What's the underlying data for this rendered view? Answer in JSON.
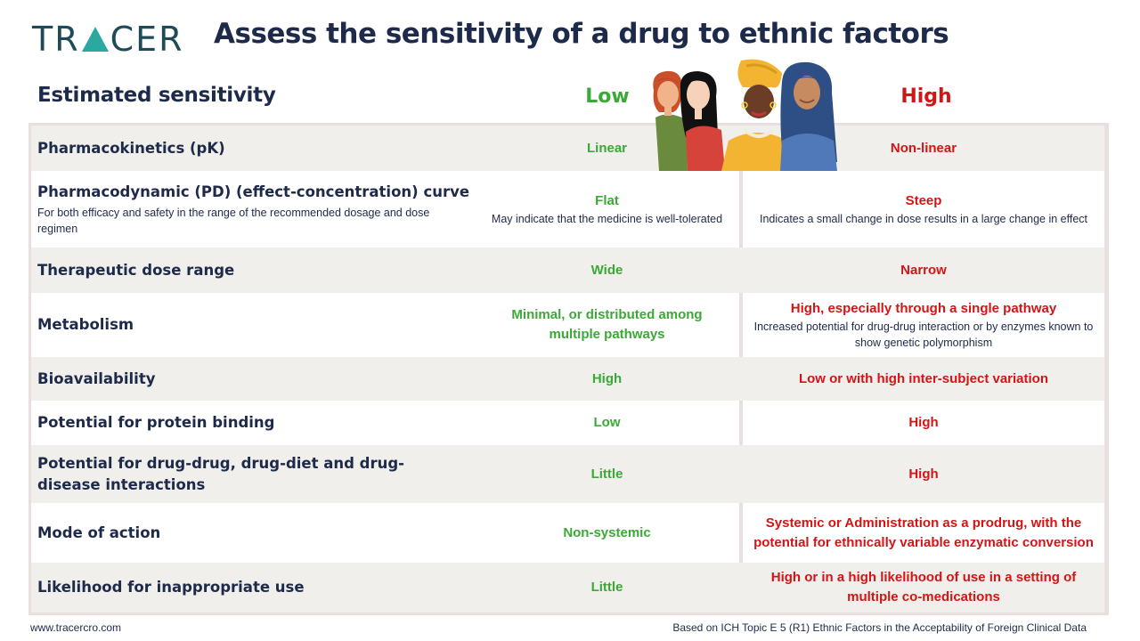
{
  "brand": {
    "logo_left": "TR",
    "logo_right": "CER",
    "colors": {
      "navy": "#1e2a4a",
      "teal": "#2ba9a1",
      "green": "#3aa935",
      "red": "#d41515"
    }
  },
  "title": "Assess the sensitivity of a drug to ethnic factors",
  "header": {
    "label": "Estimated sensitivity",
    "low": "Low",
    "high": "High"
  },
  "rows": [
    {
      "label": "Pharmacokinetics (pK)",
      "sub": "",
      "low": "Linear",
      "low_note": "",
      "high": "Non-linear",
      "high_note": ""
    },
    {
      "label": "Pharmacodynamic (PD) (effect-concentration) curve",
      "sub": "For both efficacy and safety in the range of the recommended dosage and dose regimen",
      "low": "Flat",
      "low_note": "May indicate that the medicine is well-tolerated",
      "high": "Steep",
      "high_note": "Indicates a small change in dose results in a large change in effect"
    },
    {
      "label": "Therapeutic dose range",
      "sub": "",
      "low": "Wide",
      "low_note": "",
      "high": "Narrow",
      "high_note": ""
    },
    {
      "label": "Metabolism",
      "sub": "",
      "low": "Minimal, or distributed among multiple pathways",
      "low_note": "",
      "high": "High, especially through a single pathway",
      "high_note": "Increased potential for drug-drug interaction or by enzymes known to show genetic polymorphism"
    },
    {
      "label": "Bioavailability",
      "sub": "",
      "low": "High",
      "low_note": "",
      "high": "Low or with high inter-subject variation",
      "high_note": ""
    },
    {
      "label": "Potential for protein binding",
      "sub": "",
      "low": "Low",
      "low_note": "",
      "high": "High",
      "high_note": ""
    },
    {
      "label": "Potential for drug-drug, drug-diet and drug-disease interactions",
      "sub": "",
      "low": "Little",
      "low_note": "",
      "high": "High",
      "high_note": ""
    },
    {
      "label": "Mode of action",
      "sub": "",
      "low": "Non-systemic",
      "low_note": "",
      "high": "Systemic or Administration as a prodrug, with the potential for ethnically variable enzymatic conversion",
      "high_note": ""
    },
    {
      "label": "Likelihood for inappropriate use",
      "sub": "",
      "low": "Little",
      "low_note": "",
      "high": "High or in a high likelihood of use in a setting of multiple co-medications",
      "high_note": ""
    }
  ],
  "footer": {
    "website": "www.tracercro.com",
    "source": "Based on ICH Topic E 5 (R1) Ethnic Factors in the Acceptability of Foreign Clinical Data"
  }
}
